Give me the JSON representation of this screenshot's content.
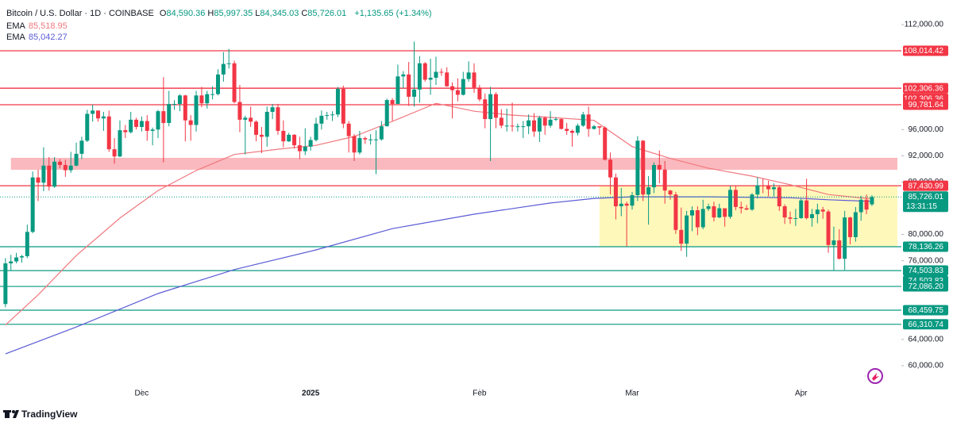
{
  "header": {
    "symbol": "Bitcoin / U.S. Dollar · 1D · COINBASE",
    "ohlc": [
      {
        "label": "O",
        "value": "84,590.36"
      },
      {
        "label": "H",
        "value": "85,997.35"
      },
      {
        "label": "L",
        "value": "84,345.03"
      },
      {
        "label": "C",
        "value": "85,726.01"
      }
    ],
    "change": "+1,135.65 (+1.34%)"
  },
  "footer": {
    "brand": "TradingView"
  },
  "chart_data": {
    "type": "candlestick",
    "up_color": "#089981",
    "down_color": "#f23645",
    "xlim": [
      -1,
      164.4
    ],
    "ylim": [
      56490,
      115750
    ],
    "grid": false,
    "xticks": [
      {
        "value": 25,
        "label": "Dec"
      },
      {
        "value": 56,
        "label": "2025"
      },
      {
        "value": 87,
        "label": "Feb"
      },
      {
        "value": 115,
        "label": "Mar"
      },
      {
        "value": 146,
        "label": "Apr"
      }
    ],
    "yticks": [
      {
        "value": 112000,
        "label": "112,000.00"
      },
      {
        "value": 96000,
        "label": "96,000.00"
      },
      {
        "value": 92000,
        "label": "92,000.00"
      },
      {
        "value": 88000,
        "label": "88,000.00"
      },
      {
        "value": 80000,
        "label": "80,000.00"
      },
      {
        "value": 76000,
        "label": "76,000.00"
      },
      {
        "value": 64000,
        "label": "64,000.00"
      },
      {
        "value": 60000,
        "label": "60,000.00"
      }
    ],
    "ohlc": [
      [
        69400,
        76400,
        68900,
        75600
      ],
      [
        75600,
        76900,
        74500,
        75900
      ],
      [
        75900,
        77200,
        75600,
        76500
      ],
      [
        76500,
        76900,
        75700,
        76700
      ],
      [
        76700,
        81500,
        76400,
        80400
      ],
      [
        80400,
        89600,
        80200,
        88700
      ],
      [
        88700,
        89900,
        85100,
        87900
      ],
      [
        87900,
        93300,
        86600,
        90500
      ],
      [
        90500,
        91800,
        86700,
        87300
      ],
      [
        87300,
        91800,
        87100,
        91100
      ],
      [
        91100,
        91500,
        90100,
        90600
      ],
      [
        90600,
        91400,
        88800,
        89800
      ],
      [
        89800,
        92600,
        89400,
        90500
      ],
      [
        90500,
        94000,
        90400,
        92300
      ],
      [
        92300,
        94900,
        91500,
        94300
      ],
      [
        94300,
        99000,
        94100,
        98400
      ],
      [
        98400,
        99800,
        97200,
        98900
      ],
      [
        98900,
        98900,
        97200,
        97700
      ],
      [
        97700,
        98700,
        95800,
        98000
      ],
      [
        98000,
        98900,
        92600,
        93000
      ],
      [
        93000,
        94700,
        90800,
        91900
      ],
      [
        91900,
        97400,
        91800,
        95900
      ],
      [
        95900,
        96700,
        94700,
        95600
      ],
      [
        95600,
        98700,
        95400,
        97500
      ],
      [
        97500,
        97800,
        96000,
        96400
      ],
      [
        96400,
        98000,
        95700,
        97300
      ],
      [
        97300,
        98200,
        94300,
        95800
      ],
      [
        95800,
        96300,
        93600,
        96000
      ],
      [
        96000,
        99000,
        94700,
        98800
      ],
      [
        98800,
        104000,
        91000,
        97000
      ],
      [
        97000,
        101900,
        96500,
        99900
      ],
      [
        99900,
        100500,
        99000,
        99900
      ],
      [
        99900,
        101400,
        98800,
        101200
      ],
      [
        101200,
        101300,
        94200,
        97400
      ],
      [
        97400,
        98200,
        94300,
        96700
      ],
      [
        96700,
        101900,
        95700,
        101200
      ],
      [
        101200,
        102500,
        99400,
        100000
      ],
      [
        100000,
        101900,
        99200,
        101400
      ],
      [
        101400,
        102600,
        100600,
        101400
      ],
      [
        101400,
        105200,
        101200,
        104400
      ],
      [
        104400,
        107800,
        103300,
        106000
      ],
      [
        106000,
        108300,
        105300,
        106100
      ],
      [
        106100,
        106500,
        100000,
        100200
      ],
      [
        100200,
        102800,
        95600,
        97500
      ],
      [
        97500,
        98100,
        92200,
        97800
      ],
      [
        97800,
        99500,
        96400,
        97200
      ],
      [
        97200,
        97400,
        94200,
        95200
      ],
      [
        95200,
        96400,
        92400,
        94900
      ],
      [
        94900,
        99500,
        93400,
        98700
      ],
      [
        98700,
        99900,
        97600,
        99400
      ],
      [
        99400,
        99900,
        95200,
        95800
      ],
      [
        95800,
        97400,
        93300,
        94200
      ],
      [
        94200,
        95500,
        94100,
        95200
      ],
      [
        95200,
        95300,
        93100,
        93600
      ],
      [
        93600,
        94900,
        91500,
        92700
      ],
      [
        92700,
        96200,
        92100,
        93400
      ],
      [
        93400,
        94900,
        92800,
        94400
      ],
      [
        94400,
        97800,
        94200,
        96900
      ],
      [
        96900,
        98900,
        96000,
        98100
      ],
      [
        98100,
        98700,
        97500,
        98200
      ],
      [
        98200,
        98800,
        97300,
        98300
      ],
      [
        98300,
        102500,
        97900,
        102200
      ],
      [
        102200,
        102700,
        96200,
        96900
      ],
      [
        96900,
        97300,
        92500,
        95000
      ],
      [
        95000,
        95300,
        91200,
        92500
      ],
      [
        92500,
        95800,
        92200,
        94700
      ],
      [
        94700,
        94900,
        93800,
        94500
      ],
      [
        94500,
        95300,
        93700,
        94500
      ],
      [
        94500,
        95900,
        89200,
        94500
      ],
      [
        94500,
        97300,
        94300,
        96500
      ],
      [
        96500,
        100700,
        96500,
        100500
      ],
      [
        100500,
        100800,
        97300,
        99900
      ],
      [
        99900,
        105900,
        99900,
        104100
      ],
      [
        104100,
        104900,
        102300,
        104400
      ],
      [
        104400,
        106300,
        99600,
        101000
      ],
      [
        101000,
        109400,
        99500,
        102100
      ],
      [
        102100,
        107200,
        100100,
        106100
      ],
      [
        106100,
        106300,
        103300,
        103600
      ],
      [
        103600,
        106800,
        101300,
        103900
      ],
      [
        103900,
        107100,
        102800,
        104800
      ],
      [
        104800,
        105300,
        104200,
        104700
      ],
      [
        104700,
        105500,
        102500,
        102600
      ],
      [
        102600,
        103200,
        97700,
        102000
      ],
      [
        102000,
        103800,
        100300,
        101300
      ],
      [
        101300,
        104800,
        101200,
        103700
      ],
      [
        103700,
        106400,
        103300,
        104700
      ],
      [
        104700,
        106100,
        101600,
        102400
      ],
      [
        102400,
        102800,
        100300,
        100600
      ],
      [
        100600,
        101500,
        96200,
        97600
      ],
      [
        97600,
        102500,
        91200,
        101400
      ],
      [
        101400,
        101700,
        96200,
        97800
      ],
      [
        97800,
        99100,
        96200,
        96600
      ],
      [
        96600,
        99200,
        95700,
        96600
      ],
      [
        96600,
        100100,
        95700,
        96500
      ],
      [
        96500,
        96900,
        95700,
        96500
      ],
      [
        96500,
        97300,
        94700,
        96500
      ],
      [
        96500,
        98300,
        95300,
        97400
      ],
      [
        97400,
        98500,
        94900,
        95700
      ],
      [
        95700,
        98100,
        94100,
        97800
      ],
      [
        97800,
        98000,
        95200,
        96600
      ],
      [
        96600,
        98800,
        96300,
        97500
      ],
      [
        97500,
        97900,
        97300,
        97600
      ],
      [
        97600,
        97700,
        96000,
        96100
      ],
      [
        96100,
        97000,
        95200,
        95800
      ],
      [
        95800,
        96000,
        93400,
        95500
      ],
      [
        95500,
        96900,
        95100,
        96600
      ],
      [
        96600,
        98700,
        96400,
        98300
      ],
      [
        98300,
        99500,
        94900,
        96100
      ],
      [
        96100,
        96700,
        96000,
        96500
      ],
      [
        96500,
        96500,
        95200,
        96300
      ],
      [
        96300,
        96500,
        91300,
        91400
      ],
      [
        91400,
        92500,
        86100,
        88700
      ],
      [
        88700,
        89300,
        82300,
        84300
      ],
      [
        84300,
        87100,
        82800,
        84700
      ],
      [
        84700,
        85000,
        78200,
        84400
      ],
      [
        84400,
        86500,
        83800,
        86000
      ],
      [
        86000,
        95000,
        85100,
        94300
      ],
      [
        94300,
        94400,
        85100,
        86100
      ],
      [
        86100,
        88900,
        81500,
        87200
      ],
      [
        87200,
        91000,
        86300,
        90600
      ],
      [
        90600,
        92800,
        87800,
        89900
      ],
      [
        89900,
        91200,
        84700,
        86700
      ],
      [
        86700,
        86800,
        85300,
        86100
      ],
      [
        86100,
        86500,
        80100,
        80700
      ],
      [
        80700,
        84100,
        77500,
        78600
      ],
      [
        78600,
        83600,
        76600,
        82900
      ],
      [
        82900,
        84300,
        80500,
        83700
      ],
      [
        83700,
        84300,
        79900,
        81100
      ],
      [
        81100,
        85300,
        80800,
        83900
      ],
      [
        83900,
        84700,
        83600,
        84300
      ],
      [
        84300,
        85000,
        82000,
        82600
      ],
      [
        82600,
        84700,
        82500,
        84000
      ],
      [
        84000,
        84000,
        81200,
        82700
      ],
      [
        82700,
        87400,
        82400,
        86800
      ],
      [
        86800,
        87400,
        83700,
        84200
      ],
      [
        84200,
        85000,
        83200,
        84000
      ],
      [
        84000,
        84500,
        83700,
        83800
      ],
      [
        83800,
        86300,
        83600,
        86100
      ],
      [
        86100,
        88700,
        85500,
        87500
      ],
      [
        87500,
        88500,
        86300,
        87400
      ],
      [
        87400,
        88200,
        85800,
        86900
      ],
      [
        86900,
        87800,
        85800,
        87200
      ],
      [
        87200,
        87500,
        83600,
        84300
      ],
      [
        84300,
        84600,
        81600,
        82600
      ],
      [
        82600,
        83500,
        81600,
        82400
      ],
      [
        82400,
        83900,
        81300,
        82500
      ],
      [
        82500,
        85500,
        82400,
        85200
      ],
      [
        85200,
        88500,
        82300,
        82500
      ],
      [
        82500,
        83900,
        81200,
        83100
      ],
      [
        83100,
        84700,
        81700,
        83800
      ],
      [
        83800,
        84200,
        82400,
        83500
      ],
      [
        83500,
        83800,
        77200,
        78400
      ],
      [
        78400,
        81200,
        74500,
        79100
      ],
      [
        79100,
        80800,
        76200,
        76300
      ],
      [
        76300,
        83600,
        74600,
        82600
      ],
      [
        82600,
        82700,
        78500,
        79600
      ],
      [
        79600,
        84200,
        78900,
        83400
      ],
      [
        83400,
        85900,
        82100,
        85300
      ],
      [
        85300,
        86100,
        83100,
        83800
      ],
      [
        84590.36,
        85997.35,
        84345.03,
        85726.01
      ]
    ],
    "series": [
      {
        "name": "EMA",
        "color": "#f0787f",
        "value_label": "85,518.95",
        "x": [
          0,
          6,
          13,
          21,
          28,
          35,
          42,
          50,
          57,
          64,
          71,
          79,
          86,
          93,
          100,
          108,
          115,
          122,
          129,
          137,
          144,
          151,
          158,
          159
        ],
        "values": [
          66200,
          70800,
          76800,
          82500,
          86700,
          89750,
          92200,
          93000,
          93600,
          94950,
          97250,
          100000,
          98800,
          98200,
          97850,
          97400,
          93400,
          91600,
          90100,
          88900,
          87600,
          86100,
          85500,
          85518.95
        ]
      },
      {
        "name": "EMA",
        "color": "#5b5bd6",
        "value_label": "85,042.27",
        "x": [
          0,
          13,
          28,
          42,
          57,
          71,
          86,
          100,
          108,
          115,
          129,
          144,
          151,
          159
        ],
        "values": [
          61800,
          65900,
          71000,
          74650,
          77650,
          80900,
          83100,
          84800,
          85500,
          85750,
          85750,
          85600,
          85300,
          85042.27
        ]
      }
    ],
    "zones": [
      {
        "low": 89870,
        "high": 91690,
        "start": 1,
        "color": "rgba(242,54,69,0.35)"
      },
      {
        "low": 78136.26,
        "high": 87430.99,
        "start": 109,
        "color": "rgba(255,235,59,0.35)"
      }
    ],
    "levels": [
      {
        "value": 108014.42,
        "label": "108,014.42",
        "color": "#f23645"
      },
      {
        "value": 102306.36,
        "label": "102,306.36",
        "color": "#f23645"
      },
      {
        "value": 102306.36,
        "label": "102,306.36",
        "color": "#f23645"
      },
      {
        "value": 99781.64,
        "label": "99,781.64",
        "color": "#f23645"
      },
      {
        "value": 87430.99,
        "label": "87,430.99",
        "color": "#f23645"
      },
      {
        "value": 78136.26,
        "label": "78,136.26",
        "color": "#089981"
      },
      {
        "value": 74503.83,
        "label": "74,503.83",
        "color": "#089981"
      },
      {
        "value": 74503.83,
        "label": "74,503.83",
        "color": "#089981"
      },
      {
        "value": 72086.2,
        "label": "72,086.20",
        "color": "#089981"
      },
      {
        "value": 68459.75,
        "label": "68,459.75",
        "color": "#089981"
      },
      {
        "value": 66310.74,
        "label": "66,310.74",
        "color": "#089981"
      }
    ],
    "price_label": {
      "value": 85726.01,
      "label": "85,726.01",
      "countdown": "13:31:15",
      "color": "#089981"
    }
  }
}
